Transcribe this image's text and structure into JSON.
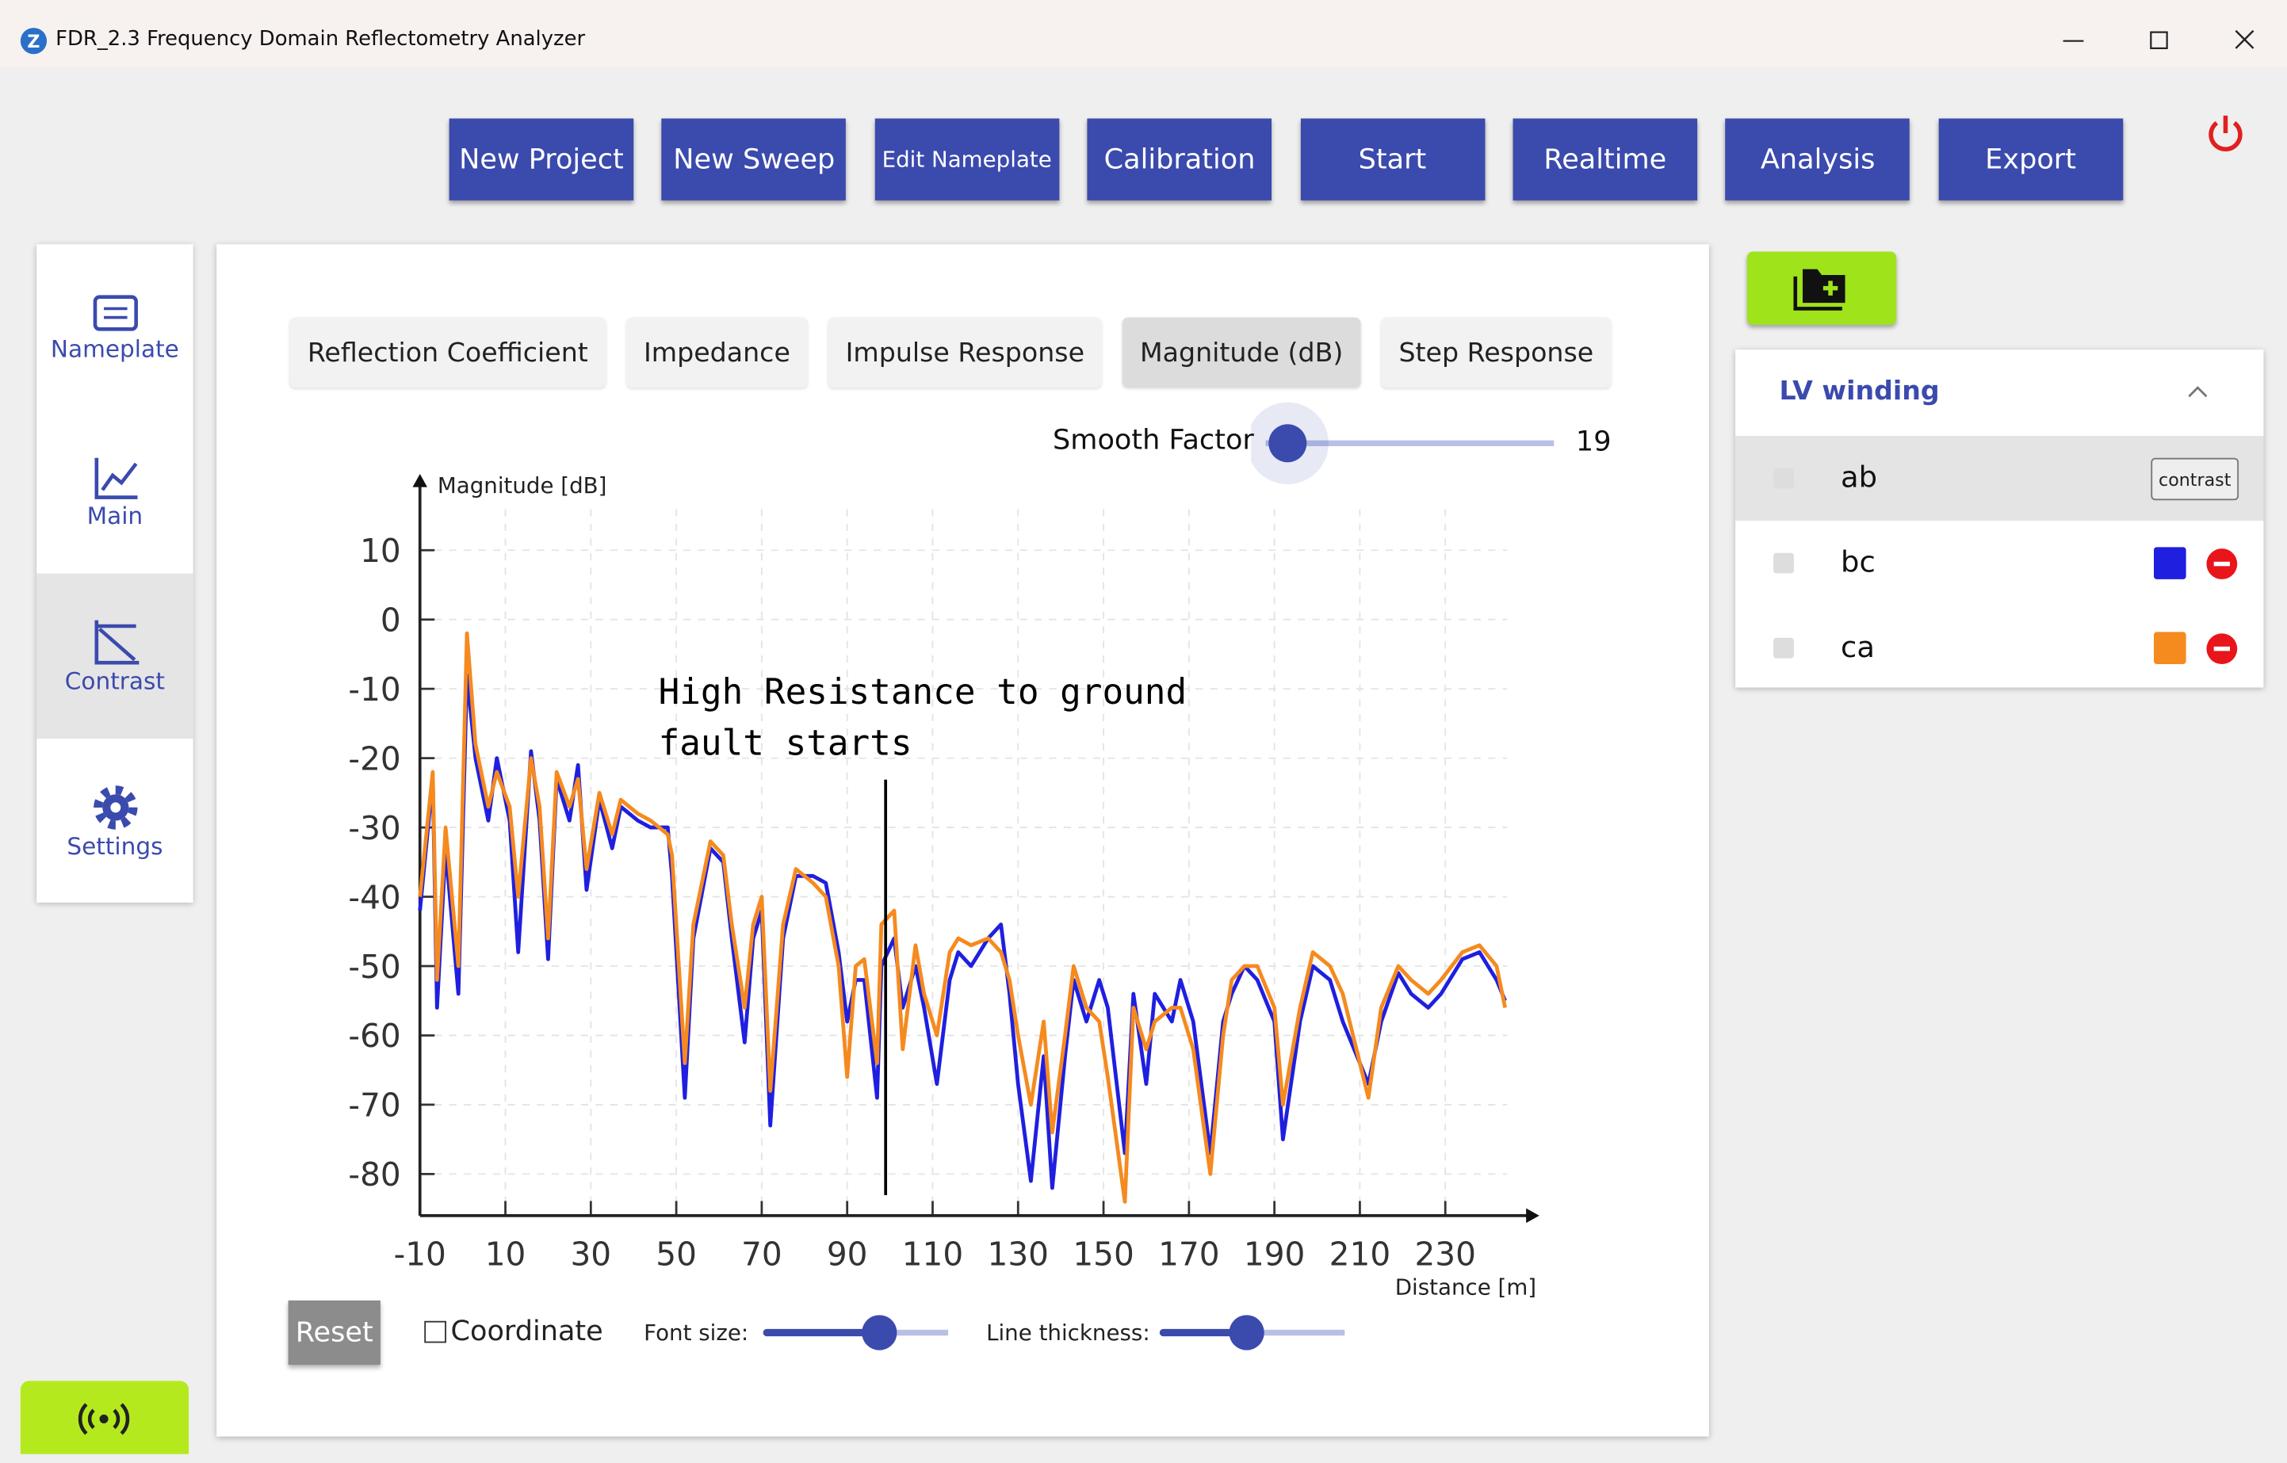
{
  "window": {
    "title": "FDR_2.3 Frequency Domain Reflectometry Analyzer"
  },
  "toolbar": [
    "New Project",
    "New Sweep",
    "Edit Nameplate",
    "Calibration",
    "Start",
    "Realtime",
    "Analysis",
    "Export"
  ],
  "sidebar": [
    "Nameplate",
    "Main",
    "Contrast",
    "Settings"
  ],
  "tabs": [
    "Reflection Coefficient",
    "Impedance",
    "Impulse Response",
    "Magnitude (dB)",
    "Step Response"
  ],
  "smooth_factor": {
    "label": "Smooth Factor",
    "value": 19
  },
  "chart_data": {
    "type": "line",
    "x": [
      -10,
      -7,
      -6,
      -4,
      -1,
      1,
      3,
      6,
      8,
      11,
      13,
      16,
      18,
      20,
      22,
      25,
      27,
      29,
      32,
      35,
      37,
      41,
      44,
      48,
      49,
      52,
      54,
      58,
      61,
      63,
      66,
      68,
      70,
      72,
      75,
      78,
      82,
      85,
      88,
      90,
      92,
      94,
      97,
      98,
      101,
      103,
      106,
      108,
      111,
      114,
      116,
      119,
      123,
      126,
      128,
      130,
      133,
      136,
      138,
      141,
      143,
      146,
      149,
      151,
      155,
      157,
      160,
      162,
      166,
      168,
      171,
      175,
      178,
      180,
      183,
      186,
      190,
      192,
      196,
      199,
      203,
      206,
      212,
      215,
      219,
      222,
      226,
      229,
      234,
      238,
      242,
      244
    ],
    "series": [
      {
        "name": "bc",
        "color": "#1f1fe0",
        "values": [
          -42,
          -23,
          -56,
          -33,
          -54,
          -8,
          -20,
          -29,
          -20,
          -29,
          -48,
          -19,
          -29,
          -49,
          -23,
          -29,
          -21,
          -39,
          -26,
          -33,
          -27,
          -29,
          -30,
          -30,
          -37,
          -69,
          -46,
          -33,
          -35,
          -46,
          -61,
          -46,
          -42,
          -73,
          -46,
          -37,
          -37,
          -38,
          -48,
          -58,
          -52,
          -52,
          -69,
          -50,
          -46,
          -56,
          -50,
          -56,
          -67,
          -52,
          -48,
          -50,
          -46,
          -44,
          -54,
          -67,
          -81,
          -63,
          -82,
          -63,
          -52,
          -58,
          -52,
          -56,
          -77,
          -54,
          -67,
          -54,
          -58,
          -52,
          -58,
          -77,
          -58,
          -54,
          -50,
          -52,
          -58,
          -75,
          -58,
          -50,
          -52,
          -58,
          -67,
          -58,
          -51,
          -54,
          -56,
          -54,
          -49,
          -48,
          -52,
          -55
        ]
      },
      {
        "name": "ca",
        "color": "#f58a1f",
        "values": [
          -40,
          -22,
          -52,
          -30,
          -50,
          -2,
          -18,
          -27,
          -22,
          -27,
          -40,
          -20,
          -27,
          -46,
          -22,
          -27,
          -23,
          -36,
          -25,
          -31,
          -26,
          -28,
          -29,
          -31,
          -34,
          -64,
          -44,
          -32,
          -34,
          -44,
          -56,
          -44,
          -40,
          -68,
          -44,
          -36,
          -38,
          -40,
          -50,
          -66,
          -50,
          -49,
          -64,
          -44,
          -42,
          -62,
          -47,
          -54,
          -60,
          -48,
          -46,
          -47,
          -46,
          -48,
          -52,
          -60,
          -70,
          -58,
          -74,
          -60,
          -50,
          -56,
          -58,
          -66,
          -84,
          -56,
          -62,
          -58,
          -56,
          -56,
          -62,
          -80,
          -60,
          -52,
          -50,
          -50,
          -56,
          -70,
          -56,
          -48,
          -50,
          -54,
          -69,
          -56,
          -50,
          -52,
          -54,
          -52,
          -48,
          -47,
          -50,
          -56
        ]
      }
    ],
    "xlabel": "Distance [m]",
    "ylabel": "Magnitude [dB]",
    "xlim": [
      -10,
      252
    ],
    "ylim": [
      -86,
      21
    ],
    "xticks": [
      -10,
      10,
      30,
      50,
      70,
      90,
      110,
      130,
      150,
      170,
      190,
      210,
      230
    ],
    "yticks": [
      10,
      0,
      -10,
      -20,
      -30,
      -40,
      -50,
      -60,
      -70,
      -80
    ],
    "grid": true,
    "annotation": {
      "lines": [
        "High Resistance to ground",
        "fault starts"
      ],
      "x": 99
    }
  },
  "controls": {
    "reset": "Reset",
    "coordinate": "Coordinate",
    "font_size": "Font size:",
    "line_thickness": "Line thickness:"
  },
  "winding_panel": {
    "title": "LV winding",
    "reference": "ab",
    "contrast": "contrast"
  }
}
